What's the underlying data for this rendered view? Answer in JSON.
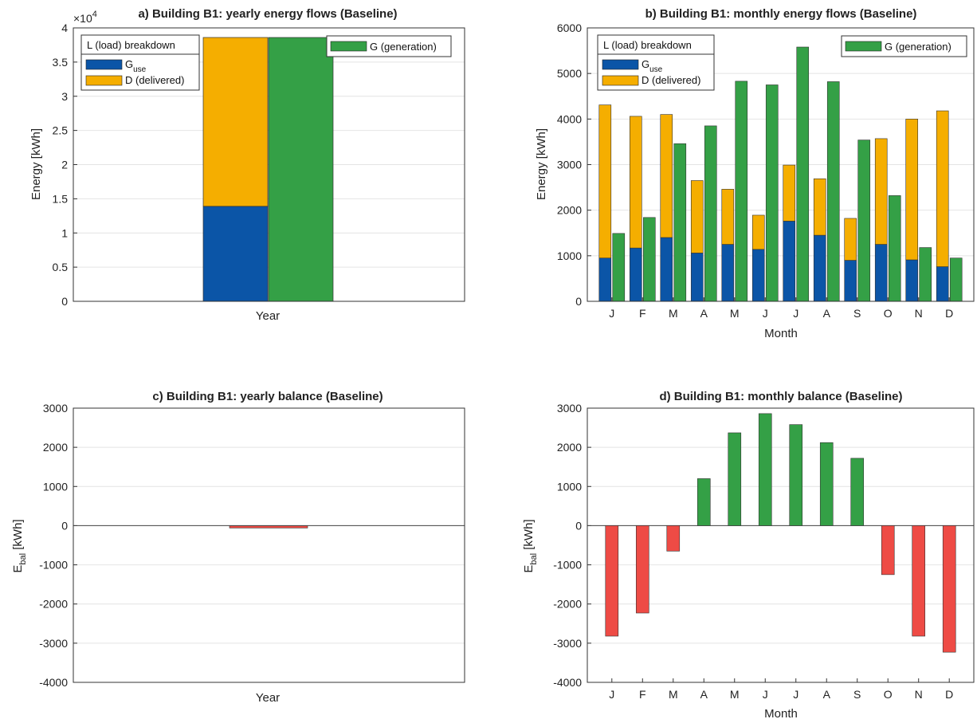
{
  "chart_data": [
    {
      "id": "a",
      "type": "bar",
      "title": "a) Building B1: yearly energy flows (Baseline)",
      "xlabel": "Year",
      "ylabel": "Energy [kWh]",
      "ylim": [
        0,
        4
      ],
      "yticks": [
        "0",
        "0.5",
        "1",
        "1.5",
        "2",
        "2.5",
        "3",
        "3.5",
        "4"
      ],
      "y_multiplier": "×10",
      "y_multiplier_exp": "4",
      "categories": [
        "Year"
      ],
      "stacked_series": [
        {
          "name": "G",
          "name_sub": "use",
          "values": [
            1.39
          ],
          "color": "#0b55a7"
        },
        {
          "name": "D (delivered)",
          "values": [
            2.47
          ],
          "color": "#f5ae00"
        }
      ],
      "series": [
        {
          "name": "G (generation)",
          "values": [
            3.86
          ],
          "color": "#34a046"
        }
      ],
      "legend_load_title": "L (load) breakdown",
      "grid": true
    },
    {
      "id": "b",
      "type": "bar",
      "title": "b) Building B1: monthly energy flows (Baseline)",
      "xlabel": "Month",
      "ylabel": "Energy [kWh]",
      "ylim": [
        0,
        6000
      ],
      "yticks": [
        "0",
        "1000",
        "2000",
        "3000",
        "4000",
        "5000",
        "6000"
      ],
      "categories": [
        "J",
        "F",
        "M",
        "A",
        "M",
        "J",
        "J",
        "A",
        "S",
        "O",
        "N",
        "D"
      ],
      "stacked_series": [
        {
          "name": "G",
          "name_sub": "use",
          "values": [
            950,
            1170,
            1400,
            1060,
            1250,
            1140,
            1760,
            1450,
            900,
            1250,
            910,
            760
          ],
          "color": "#0b55a7"
        },
        {
          "name": "D (delivered)",
          "values": [
            3360,
            2890,
            2700,
            1590,
            1210,
            750,
            1230,
            1240,
            920,
            2320,
            3090,
            3420
          ],
          "color": "#f5ae00"
        }
      ],
      "series": [
        {
          "name": "G (generation)",
          "values": [
            1490,
            1840,
            3460,
            3850,
            4830,
            4750,
            5580,
            4820,
            3540,
            2320,
            1180,
            950
          ],
          "color": "#34a046"
        }
      ],
      "legend_load_title": "L (load) breakdown",
      "grid": true
    },
    {
      "id": "c",
      "type": "bar",
      "title": "c) Building B1: yearly balance (Baseline)",
      "xlabel": "Year",
      "ylabel": "E",
      "ylabel_sub": "bal",
      "ylabel_unit": " [kWh]",
      "ylim": [
        -4000,
        3000
      ],
      "yticks": [
        "-4000",
        "-3000",
        "-2000",
        "-1000",
        "0",
        "1000",
        "2000",
        "3000"
      ],
      "categories": [
        "Year"
      ],
      "values": [
        -60
      ],
      "pos_color": "#34a046",
      "neg_color": "#ee4b45",
      "grid": true
    },
    {
      "id": "d",
      "type": "bar",
      "title": "d) Building B1: monthly balance (Baseline)",
      "xlabel": "Month",
      "ylabel": "E",
      "ylabel_sub": "bal",
      "ylabel_unit": " [kWh]",
      "ylim": [
        -4000,
        3000
      ],
      "yticks": [
        "-4000",
        "-3000",
        "-2000",
        "-1000",
        "0",
        "1000",
        "2000",
        "3000"
      ],
      "categories": [
        "J",
        "F",
        "M",
        "A",
        "M",
        "J",
        "J",
        "A",
        "S",
        "O",
        "N",
        "D"
      ],
      "values": [
        -2820,
        -2230,
        -650,
        1200,
        2370,
        2860,
        2580,
        2120,
        1720,
        -1250,
        -2820,
        -3230
      ],
      "pos_color": "#34a046",
      "neg_color": "#ee4b45",
      "grid": true
    }
  ]
}
